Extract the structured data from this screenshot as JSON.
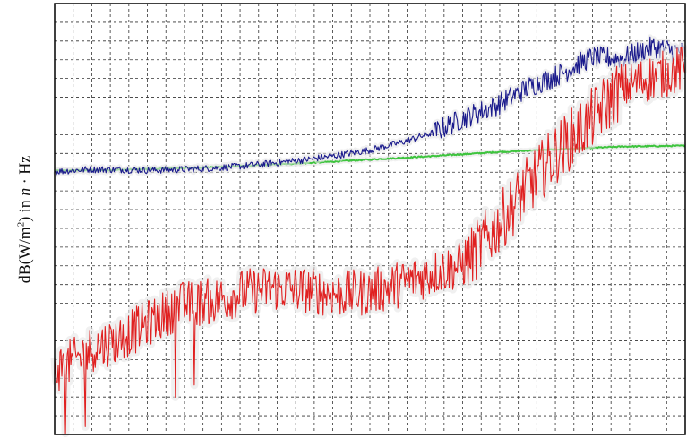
{
  "chart_data": {
    "type": "line",
    "title": "",
    "xlabel": "",
    "ylabel": {
      "prefix": "dB(W/m",
      "sup": "2",
      "middle": ") in ",
      "var": "n",
      "suffix": " · Hz"
    },
    "grid": true,
    "x_range": [
      0,
      100
    ],
    "y_range": [
      0,
      100
    ],
    "colors": {
      "blue": "#1a1a8c",
      "green": "#3ec43e",
      "red": "#e02020",
      "grid": "#333333",
      "halo": "#e6e6e6"
    },
    "series": [
      {
        "color_key": "blue",
        "x": [
          0,
          5,
          10,
          15,
          20,
          25,
          30,
          35,
          40,
          45,
          50,
          55,
          60,
          65,
          70,
          75,
          80,
          85,
          90,
          95,
          100
        ],
        "y": [
          61,
          61.5,
          61.5,
          61.3,
          61.5,
          61.8,
          62.3,
          63,
          63.8,
          64.8,
          66,
          67.8,
          70,
          73.5,
          76.3,
          80.5,
          83.5,
          87.5,
          87.3,
          90,
          88.5
        ],
        "noise": 0.8
      },
      {
        "color_key": "green",
        "x": [
          0,
          10,
          20,
          30,
          40,
          50,
          60,
          70,
          80,
          90,
          100
        ],
        "y": [
          61.2,
          61.4,
          61.8,
          62.3,
          63,
          63.8,
          64.6,
          65.5,
          66.2,
          66.8,
          67
        ],
        "noise": 0.15
      },
      {
        "color_key": "red",
        "x": [
          0,
          3,
          6,
          10,
          15,
          20,
          25,
          30,
          35,
          40,
          45,
          50,
          55,
          60,
          65,
          70,
          75,
          80,
          85,
          90,
          95,
          100
        ],
        "y": [
          15,
          17,
          20,
          22,
          26,
          30,
          31,
          33,
          34,
          33.5,
          32.5,
          33,
          35,
          37.5,
          39.5,
          48,
          57.5,
          66,
          73,
          80.5,
          83,
          85
        ],
        "noise": 5.5
      }
    ]
  }
}
